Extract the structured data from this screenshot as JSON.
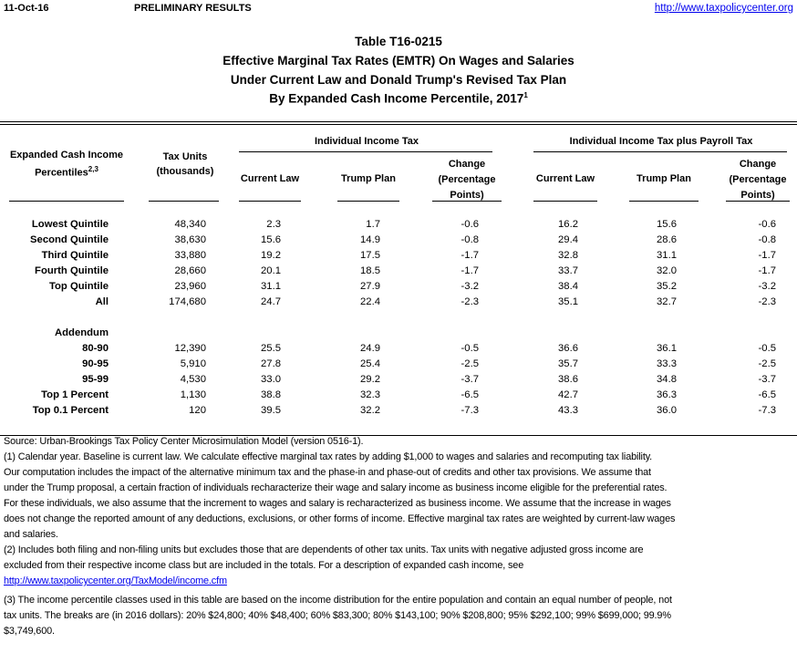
{
  "header": {
    "date": "11-Oct-16",
    "status": "PRELIMINARY RESULTS",
    "url": "http://www.taxpolicycenter.org"
  },
  "title": {
    "line1": "Table T16-0215",
    "line2": "Effective Marginal Tax Rates (EMTR) On Wages and Salaries",
    "line3": "Under Current Law and Donald Trump's Revised Tax Plan",
    "line4": "By Expanded Cash Income Percentile, 2017",
    "line4_sup": "1"
  },
  "columns": {
    "group1": "Individual Income Tax",
    "group2": "Individual Income Tax plus Payroll Tax",
    "percentile_l1": "Expanded Cash Income",
    "percentile_l2": "Percentiles",
    "percentile_sup": "2,3",
    "tax_units_l1": "Tax Units",
    "tax_units_l2": "(thousands)",
    "current_law": "Current Law",
    "trump_plan": "Trump Plan",
    "change_l1": "Change",
    "change_l2": "(Percentage",
    "change_l3": "Points)"
  },
  "rows": [
    {
      "label": "Lowest Quintile",
      "values": [
        "48,340",
        "2.3",
        "1.7",
        "-0.6",
        "16.2",
        "15.6",
        "-0.6"
      ]
    },
    {
      "label": "Second Quintile",
      "values": [
        "38,630",
        "15.6",
        "14.9",
        "-0.8",
        "29.4",
        "28.6",
        "-0.8"
      ]
    },
    {
      "label": "Third Quintile",
      "values": [
        "33,880",
        "19.2",
        "17.5",
        "-1.7",
        "32.8",
        "31.1",
        "-1.7"
      ]
    },
    {
      "label": "Fourth Quintile",
      "values": [
        "28,660",
        "20.1",
        "18.5",
        "-1.7",
        "33.7",
        "32.0",
        "-1.7"
      ]
    },
    {
      "label": "Top Quintile",
      "values": [
        "23,960",
        "31.1",
        "27.9",
        "-3.2",
        "38.4",
        "35.2",
        "-3.2"
      ]
    },
    {
      "label": "All",
      "values": [
        "174,680",
        "24.7",
        "22.4",
        "-2.3",
        "35.1",
        "32.7",
        "-2.3"
      ]
    }
  ],
  "addendum_label": "Addendum",
  "addendum_rows": [
    {
      "label": "80-90",
      "values": [
        "12,390",
        "25.5",
        "24.9",
        "-0.5",
        "36.6",
        "36.1",
        "-0.5"
      ]
    },
    {
      "label": "90-95",
      "values": [
        "5,910",
        "27.8",
        "25.4",
        "-2.5",
        "35.7",
        "33.3",
        "-2.5"
      ]
    },
    {
      "label": "95-99",
      "values": [
        "4,530",
        "33.0",
        "29.2",
        "-3.7",
        "38.6",
        "34.8",
        "-3.7"
      ]
    },
    {
      "label": "Top 1 Percent",
      "values": [
        "1,130",
        "38.8",
        "32.3",
        "-6.5",
        "42.7",
        "36.3",
        "-6.5"
      ]
    },
    {
      "label": "Top 0.1 Percent",
      "values": [
        "120",
        "39.5",
        "32.2",
        "-7.3",
        "43.3",
        "36.0",
        "-7.3"
      ]
    }
  ],
  "notes": [
    "Source: Urban-Brookings Tax Policy Center Microsimulation Model (version 0516-1).",
    "(1) Calendar year. Baseline is current law. We calculate effective marginal tax rates by adding $1,000 to wages and salaries and recomputing tax liability.",
    "Our computation includes the impact of the alternative minimum tax and the phase-in and phase-out of credits and other tax provisions. We assume that",
    "under the Trump proposal, a certain fraction of individuals recharacterize their wage and salary income as business income eligible for the preferential rates.",
    "For these individuals, we also assume that the increment to wages and salary is recharacterized as business income. We assume that the increase in wages",
    "does not change the reported amount of any deductions, exclusions, or other forms of income. Effective marginal tax rates are weighted by current-law wages",
    "and salaries.",
    "(2) Includes both filing and non-filing units but excludes those that are dependents of other tax units. Tax units with negative adjusted gross income are",
    "excluded from their respective income class but are included in the totals. For a description of expanded cash income, see"
  ],
  "notes_link": "http://www.taxpolicycenter.org/TaxModel/income.cfm",
  "notes3": [
    "(3) The income percentile classes used in this table are based on the income distribution for the entire population and contain an equal number of people, not",
    "tax units. The breaks are (in 2016 dollars): 20% $24,800; 40% $48,400; 60% $83,300; 80% $143,100; 90% $208,800; 95% $292,100; 99% $699,000; 99.9%",
    "$3,749,600."
  ]
}
